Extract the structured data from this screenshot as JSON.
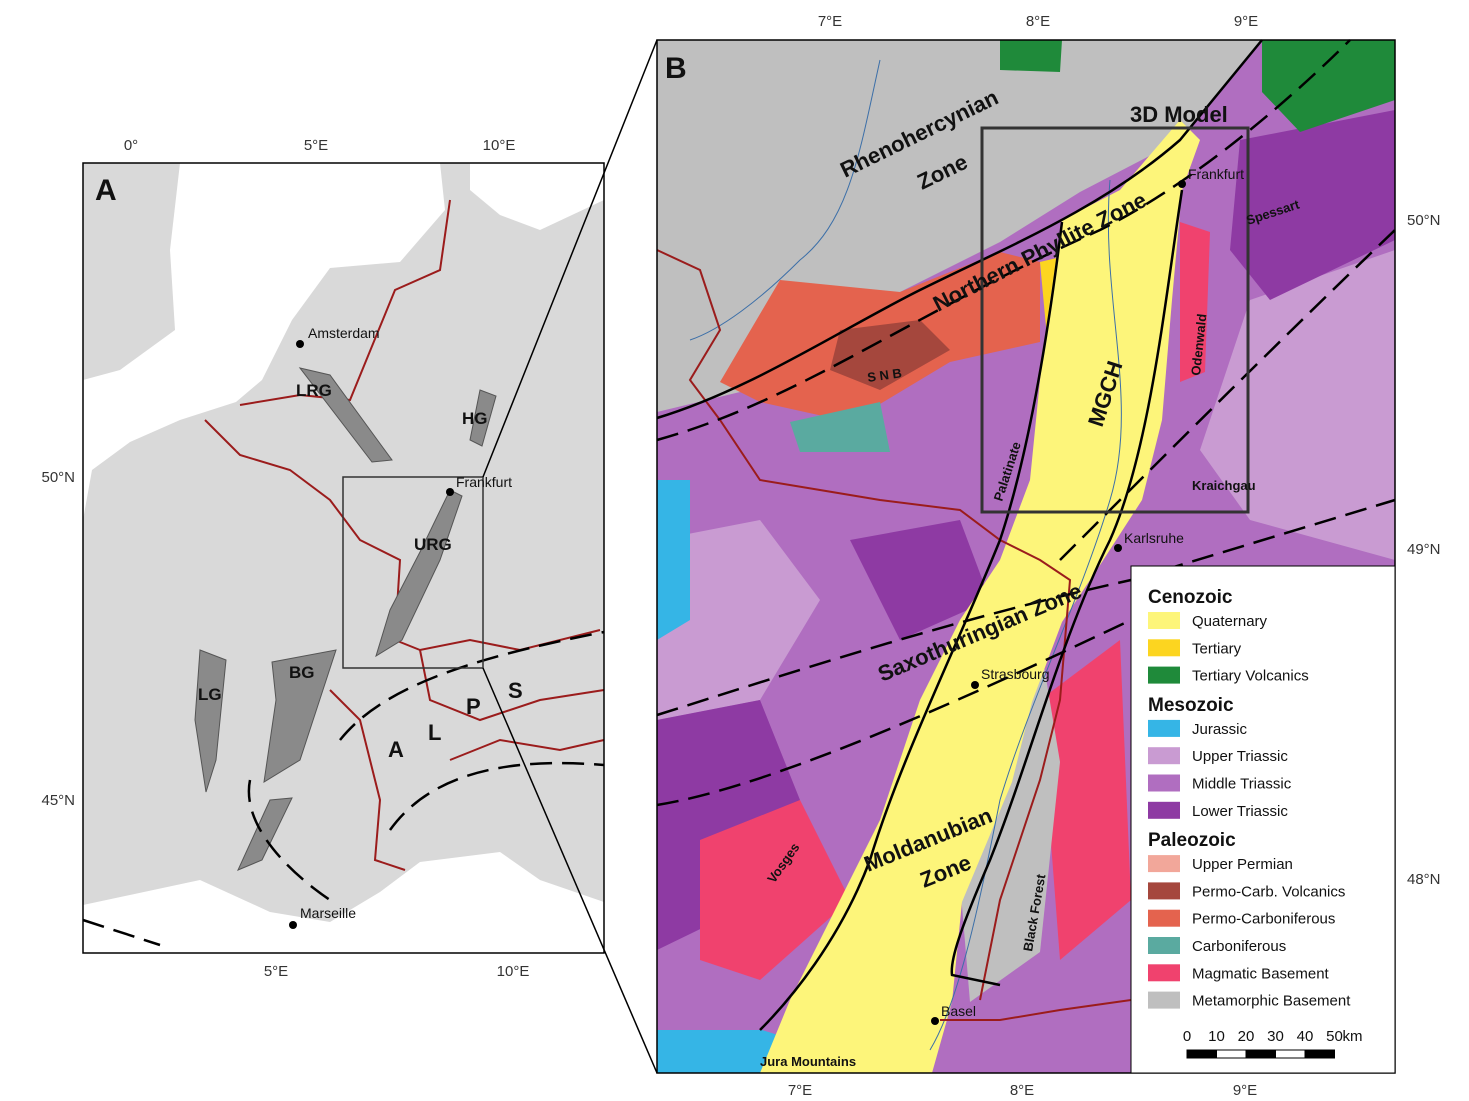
{
  "panel_a": {
    "label": "A",
    "lon_ticks_top": [
      "0°",
      "5°E",
      "10°E"
    ],
    "lon_ticks_bottom": [
      "5°E",
      "10°E"
    ],
    "lat_ticks": [
      "50°N",
      "45°N"
    ],
    "places": [
      "Amsterdam",
      "Frankfurt",
      "Marseille"
    ],
    "features": [
      "LRG",
      "HG",
      "URG",
      "LG",
      "BG"
    ],
    "alps": [
      "A",
      "L",
      "P",
      "S"
    ]
  },
  "panel_b": {
    "label": "B",
    "lon_ticks_top": [
      "7°E",
      "8°E",
      "9°E"
    ],
    "lon_ticks_bottom": [
      "7°E",
      "8°E",
      "9°E"
    ],
    "lat_ticks": [
      "50°N",
      "49°N",
      "48°N"
    ],
    "zones": [
      "Rhenohercynian",
      "Zone",
      "Northern Phyllite Zone",
      "Saxothuringian Zone",
      "Moldanubian",
      "Zone"
    ],
    "model_box": "3D Model",
    "places": [
      "Frankfurt",
      "Karlsruhe",
      "Strasbourg",
      "Basel"
    ],
    "features": [
      "Spessart",
      "S N B",
      "MGCH",
      "Odenwald",
      "Palatinate",
      "Kraichgau",
      "Vosges",
      "Black Forest",
      "Jura Mountains"
    ]
  },
  "legend": {
    "groups": [
      {
        "title": "Cenozoic",
        "items": [
          {
            "name": "Quaternary",
            "color": "#fdf57a"
          },
          {
            "name": "Tertiary",
            "color": "#fcd520"
          },
          {
            "name": "Tertiary Volcanics",
            "color": "#1f8a3a"
          }
        ]
      },
      {
        "title": "Mesozoic",
        "items": [
          {
            "name": "Jurassic",
            "color": "#35b5e6"
          },
          {
            "name": "Upper Triassic",
            "color": "#c99bd2"
          },
          {
            "name": "Middle Triassic",
            "color": "#b06ec0"
          },
          {
            "name": "Lower Triassic",
            "color": "#8e3aa3"
          }
        ]
      },
      {
        "title": "Paleozoic",
        "items": [
          {
            "name": "Upper Permian",
            "color": "#f2a79a"
          },
          {
            "name": "Permo-Carb. Volcanics",
            "color": "#a5473d"
          },
          {
            "name": "Permo-Carboniferous",
            "color": "#e4634e"
          },
          {
            "name": "Carboniferous",
            "color": "#5aaaa0"
          },
          {
            "name": "Magmatic Basement",
            "color": "#f0426e"
          },
          {
            "name": "Metamorphic Basement",
            "color": "#bfbfbf"
          }
        ]
      }
    ],
    "scale_ticks": [
      "0",
      "10",
      "20",
      "30",
      "40",
      "50"
    ],
    "scale_unit": "km"
  }
}
